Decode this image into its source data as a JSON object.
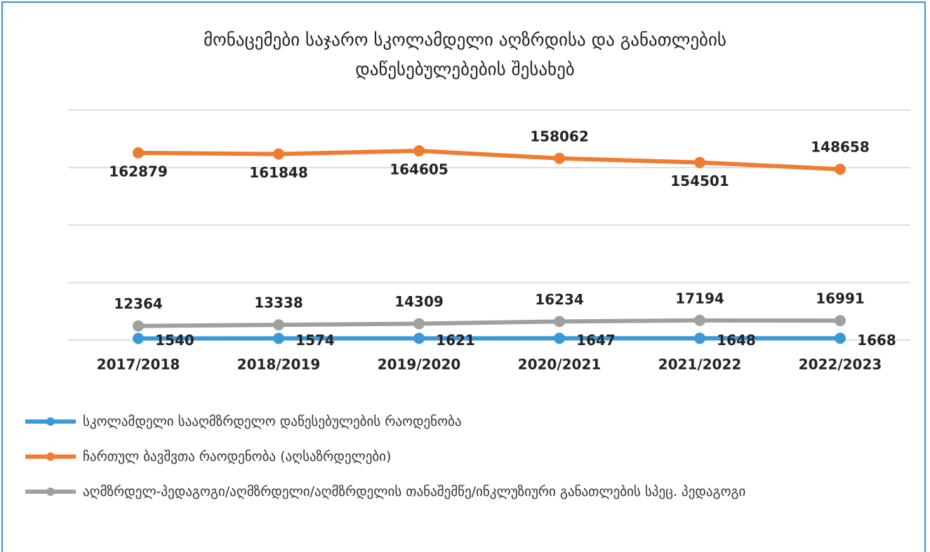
{
  "chart_data": {
    "type": "line",
    "title": "მონაცემები საჯარო სკოლამდელი აღზრდისა და განათლების\nდაწესებულებების შესახებ",
    "categories": [
      "2017/2018",
      "2018/2019",
      "2019/2020",
      "2020/2021",
      "2021/2022",
      "2022/2023"
    ],
    "series": [
      {
        "name": "სკოლამდელი სააღმზრდელო დაწესებულების რაოდენობა",
        "color": "#3a9ad9",
        "values": [
          1540,
          1574,
          1621,
          1647,
          1648,
          1668
        ]
      },
      {
        "name": "ჩართულ ბავშვთა რაოდენობა (აღსაზრდელები)",
        "color": "#f07c30",
        "values": [
          162879,
          161848,
          164605,
          158062,
          154501,
          148658
        ]
      },
      {
        "name": "აღმზრდელ-პედაგოგი/აღმზრდელი/აღმზრდელის თანაშემწე/ინკლუზიური განათლების სპეც. პედაგოგი",
        "color": "#a0a0a0",
        "values": [
          12364,
          13338,
          14309,
          16234,
          17194,
          16991
        ]
      }
    ],
    "ylim": [
      0,
      200000
    ],
    "yticks": [
      0,
      50000,
      100000,
      150000,
      200000
    ],
    "grid": true
  }
}
